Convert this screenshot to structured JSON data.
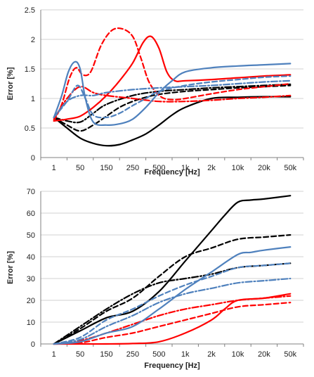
{
  "chart_data": [
    {
      "type": "line",
      "title": "",
      "xlabel": "Frequency [Hz]",
      "ylabel": "Error [%]",
      "ylim": [
        0,
        2.5
      ],
      "yticks": [
        "0",
        "0.5",
        "1",
        "1.5",
        "2",
        "2.5"
      ],
      "categories": [
        "1",
        "50",
        "150",
        "250",
        "500",
        "1k",
        "2k",
        "10k",
        "20k",
        "50k"
      ],
      "grid": true,
      "series": [
        {
          "color": "#000000",
          "dash": "solid",
          "x": [
            0,
            0.5,
            1.0,
            1.5,
            2.0,
            2.5,
            3.0,
            3.5,
            4.0,
            4.5,
            5.0,
            6.0,
            7.0,
            8.0,
            9.0
          ],
          "y": [
            0.68,
            0.5,
            0.33,
            0.24,
            0.2,
            0.22,
            0.3,
            0.4,
            0.55,
            0.72,
            0.85,
            1.0,
            1.02,
            1.03,
            1.03
          ]
        },
        {
          "color": "#000000",
          "dash": "dashed",
          "x": [
            0,
            0.5,
            1.0,
            1.5,
            2.0,
            2.5,
            3.0,
            3.5,
            4.0,
            5.0,
            6.0,
            7.0,
            8.0,
            9.0
          ],
          "y": [
            0.68,
            0.55,
            0.45,
            0.55,
            0.7,
            0.85,
            0.95,
            1.02,
            1.07,
            1.12,
            1.15,
            1.18,
            1.2,
            1.22
          ]
        },
        {
          "color": "#000000",
          "dash": "dashdot",
          "x": [
            0,
            0.5,
            1.0,
            1.5,
            2.0,
            3.0,
            4.0,
            5.0,
            6.0,
            7.0,
            8.0,
            9.0
          ],
          "y": [
            0.68,
            0.62,
            0.6,
            0.75,
            0.9,
            1.05,
            1.12,
            1.15,
            1.18,
            1.2,
            1.22,
            1.24
          ]
        },
        {
          "color": "#ff0000",
          "dash": "solid",
          "x": [
            0,
            0.5,
            1.0,
            1.5,
            2.0,
            2.5,
            3.0,
            3.4,
            3.7,
            4.0,
            4.3,
            4.6,
            5.0,
            6.0,
            7.0,
            8.0,
            9.0
          ],
          "y": [
            0.62,
            0.65,
            0.7,
            0.85,
            1.05,
            1.3,
            1.6,
            1.95,
            2.05,
            1.85,
            1.45,
            1.3,
            1.3,
            1.32,
            1.35,
            1.38,
            1.4
          ]
        },
        {
          "color": "#ff0000",
          "dash": "dashed",
          "x": [
            0,
            0.3,
            0.6,
            0.85,
            1.1,
            1.4,
            1.8,
            2.2,
            2.6,
            3.0,
            3.3,
            3.6,
            3.9,
            4.2,
            4.6,
            5.0,
            6.0,
            7.0,
            8.0,
            9.0
          ],
          "y": [
            0.62,
            0.9,
            1.35,
            1.52,
            1.4,
            1.45,
            1.9,
            2.15,
            2.18,
            2.05,
            1.7,
            1.3,
            1.1,
            1.0,
            0.98,
            1.0,
            1.08,
            1.15,
            1.2,
            1.25
          ]
        },
        {
          "color": "#ff0000",
          "dash": "dashdot",
          "x": [
            0,
            0.5,
            1.0,
            1.5,
            2.0,
            3.0,
            4.0,
            5.0,
            6.0,
            7.0,
            8.0,
            9.0
          ],
          "y": [
            0.65,
            1.0,
            1.2,
            1.1,
            1.05,
            1.0,
            0.95,
            0.95,
            0.97,
            1.0,
            1.02,
            1.05
          ]
        },
        {
          "color": "#4f81bd",
          "dash": "solid",
          "x": [
            0,
            0.3,
            0.55,
            0.8,
            1.0,
            1.2,
            1.5,
            2.0,
            2.5,
            3.0,
            3.5,
            4.0,
            4.5,
            5.0,
            6.0,
            7.0,
            8.0,
            9.0
          ],
          "y": [
            0.68,
            1.05,
            1.45,
            1.62,
            1.5,
            1.0,
            0.6,
            0.55,
            0.57,
            0.65,
            0.85,
            1.1,
            1.3,
            1.45,
            1.52,
            1.55,
            1.57,
            1.59
          ]
        },
        {
          "color": "#4f81bd",
          "dash": "dashed",
          "x": [
            0,
            0.5,
            0.9,
            1.2,
            1.5,
            2.0,
            2.5,
            3.0,
            3.5,
            4.0,
            5.0,
            6.0,
            7.0,
            8.0,
            9.0
          ],
          "y": [
            0.68,
            0.95,
            1.22,
            1.0,
            0.72,
            0.68,
            0.75,
            0.88,
            1.0,
            1.12,
            1.22,
            1.28,
            1.32,
            1.36,
            1.38
          ]
        },
        {
          "color": "#4f81bd",
          "dash": "dashdot",
          "x": [
            0,
            0.5,
            1.0,
            1.5,
            2.0,
            3.0,
            4.0,
            5.0,
            6.0,
            7.0,
            8.0,
            9.0
          ],
          "y": [
            0.68,
            0.95,
            1.05,
            1.05,
            1.1,
            1.15,
            1.18,
            1.2,
            1.22,
            1.25,
            1.28,
            1.3
          ]
        }
      ]
    },
    {
      "type": "line",
      "title": "",
      "xlabel": "Frequency [Hz]",
      "ylabel": "Error [%]",
      "ylim": [
        0,
        70
      ],
      "yticks": [
        "0",
        "10",
        "20",
        "30",
        "40",
        "50",
        "60",
        "70"
      ],
      "categories": [
        "1",
        "50",
        "150",
        "250",
        "500",
        "1k",
        "2k",
        "10k",
        "20k",
        "50k"
      ],
      "grid": true,
      "series": [
        {
          "color": "#000000",
          "dash": "solid",
          "x": [
            0,
            1.0,
            2.0,
            3.0,
            4.0,
            5.0,
            6.0,
            6.5,
            7.0,
            7.5,
            8.0,
            9.0
          ],
          "y": [
            0,
            6,
            12,
            15,
            24,
            38,
            52,
            59,
            65,
            66,
            66.5,
            68
          ]
        },
        {
          "color": "#000000",
          "dash": "dashed",
          "x": [
            0,
            1.0,
            2.0,
            3.0,
            4.0,
            5.0,
            6.0,
            7.0,
            8.0,
            9.0
          ],
          "y": [
            0,
            7,
            15,
            21,
            31,
            40,
            44,
            48,
            49,
            50
          ]
        },
        {
          "color": "#000000",
          "dash": "dashdot",
          "x": [
            0,
            1.0,
            2.0,
            3.0,
            4.0,
            5.0,
            6.0,
            7.0,
            8.0,
            9.0
          ],
          "y": [
            0,
            8,
            16,
            23,
            28,
            30,
            32,
            35,
            36,
            37
          ]
        },
        {
          "color": "#ff0000",
          "dash": "solid",
          "x": [
            0,
            1.0,
            2.0,
            3.0,
            4.0,
            5.0,
            6.0,
            6.5,
            7.0,
            8.0,
            9.0
          ],
          "y": [
            0,
            0,
            0,
            0.2,
            1,
            5,
            11,
            16,
            20,
            21,
            23
          ]
        },
        {
          "color": "#ff0000",
          "dash": "dashed",
          "x": [
            0,
            1.0,
            2.0,
            3.0,
            4.0,
            5.0,
            6.0,
            7.0,
            8.0,
            9.0
          ],
          "y": [
            0,
            0.5,
            3,
            5,
            8,
            11,
            14,
            17,
            18,
            19
          ]
        },
        {
          "color": "#ff0000",
          "dash": "dashdot",
          "x": [
            0,
            1.0,
            2.0,
            3.0,
            4.0,
            5.0,
            6.0,
            7.0,
            8.0,
            9.0
          ],
          "y": [
            0,
            1.5,
            5,
            9,
            13,
            16,
            18,
            20,
            21,
            22
          ]
        },
        {
          "color": "#4f81bd",
          "dash": "solid",
          "x": [
            0,
            1.0,
            2.0,
            3.0,
            4.0,
            5.0,
            6.0,
            7.0,
            7.5,
            8.0,
            9.0
          ],
          "y": [
            0,
            1,
            5,
            8,
            16,
            25,
            33,
            41,
            42,
            43,
            44.5
          ]
        },
        {
          "color": "#4f81bd",
          "dash": "dashed",
          "x": [
            0,
            1.0,
            2.0,
            3.0,
            4.0,
            5.0,
            6.0,
            7.0,
            8.0,
            9.0
          ],
          "y": [
            0,
            3,
            11,
            16,
            22,
            27,
            31,
            35,
            36,
            37
          ]
        },
        {
          "color": "#4f81bd",
          "dash": "dashdot",
          "x": [
            0,
            1.0,
            2.0,
            3.0,
            4.0,
            5.0,
            6.0,
            7.0,
            8.0,
            9.0
          ],
          "y": [
            0,
            2,
            8,
            13,
            19,
            23,
            25.5,
            28,
            29,
            30
          ]
        }
      ]
    }
  ]
}
